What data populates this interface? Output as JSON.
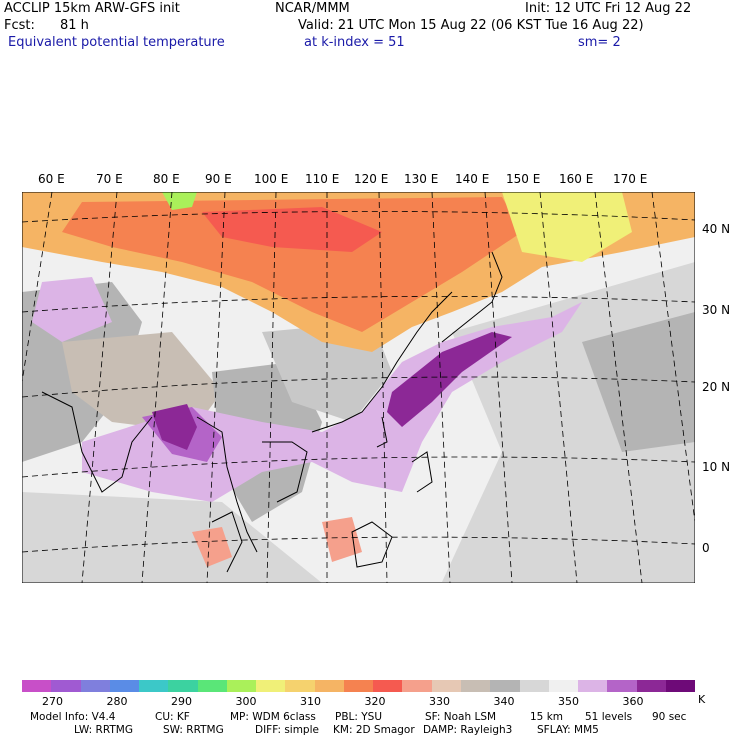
{
  "header": {
    "model": "ACCLIP 15km ARW-GFS init",
    "org": "NCAR/MMM",
    "init": "Init: 12 UTC Fri 12 Aug 22",
    "fcst_label": "Fcst:",
    "fcst_value": "81 h",
    "valid": "Valid: 21 UTC Mon 15 Aug 22 (06 KST Tue 16 Aug 22)",
    "field": "Equivalent potential temperature",
    "level": "at k-index =  51",
    "smoothing": "sm= 2"
  },
  "map": {
    "lon_labels": [
      "60 E",
      "70 E",
      "80 E",
      "90 E",
      "100 E",
      "110 E",
      "120 E",
      "130 E",
      "140 E",
      "150 E",
      "160 E",
      "170 E"
    ],
    "lat_labels": [
      "40 N",
      "30 N",
      "20 N",
      "10 N",
      "0"
    ]
  },
  "colorbar": {
    "colors": [
      "#c84fc8",
      "#a05ad2",
      "#7f7fdd",
      "#5a8ce6",
      "#3cc8c8",
      "#3cd2a0",
      "#5ae678",
      "#aaf05a",
      "#f0f078",
      "#f5d26e",
      "#f5b464",
      "#f58250",
      "#f55a50",
      "#f5a08c",
      "#e6c8b4",
      "#c8beb4",
      "#b4b4b4",
      "#d7d7d7",
      "#f0f0f0",
      "#dcb4e6",
      "#b464c8",
      "#8c2896",
      "#6e0a78"
    ],
    "ticks": [
      "270",
      "280",
      "290",
      "300",
      "310",
      "320",
      "330",
      "340",
      "350",
      "360"
    ],
    "unit": "K"
  },
  "footer": {
    "line1": [
      "Model Info: V4.4",
      "CU: KF",
      "MP: WDM 6class",
      "PBL: YSU",
      "SF: Noah LSM",
      "15 km",
      "51 levels",
      "90 sec"
    ],
    "line2": [
      "LW: RRTMG",
      "SW: RRTMG",
      "DIFF: simple",
      "KM: 2D Smagor",
      "DAMP: Rayleigh3",
      "SFLAY: MM5"
    ]
  }
}
